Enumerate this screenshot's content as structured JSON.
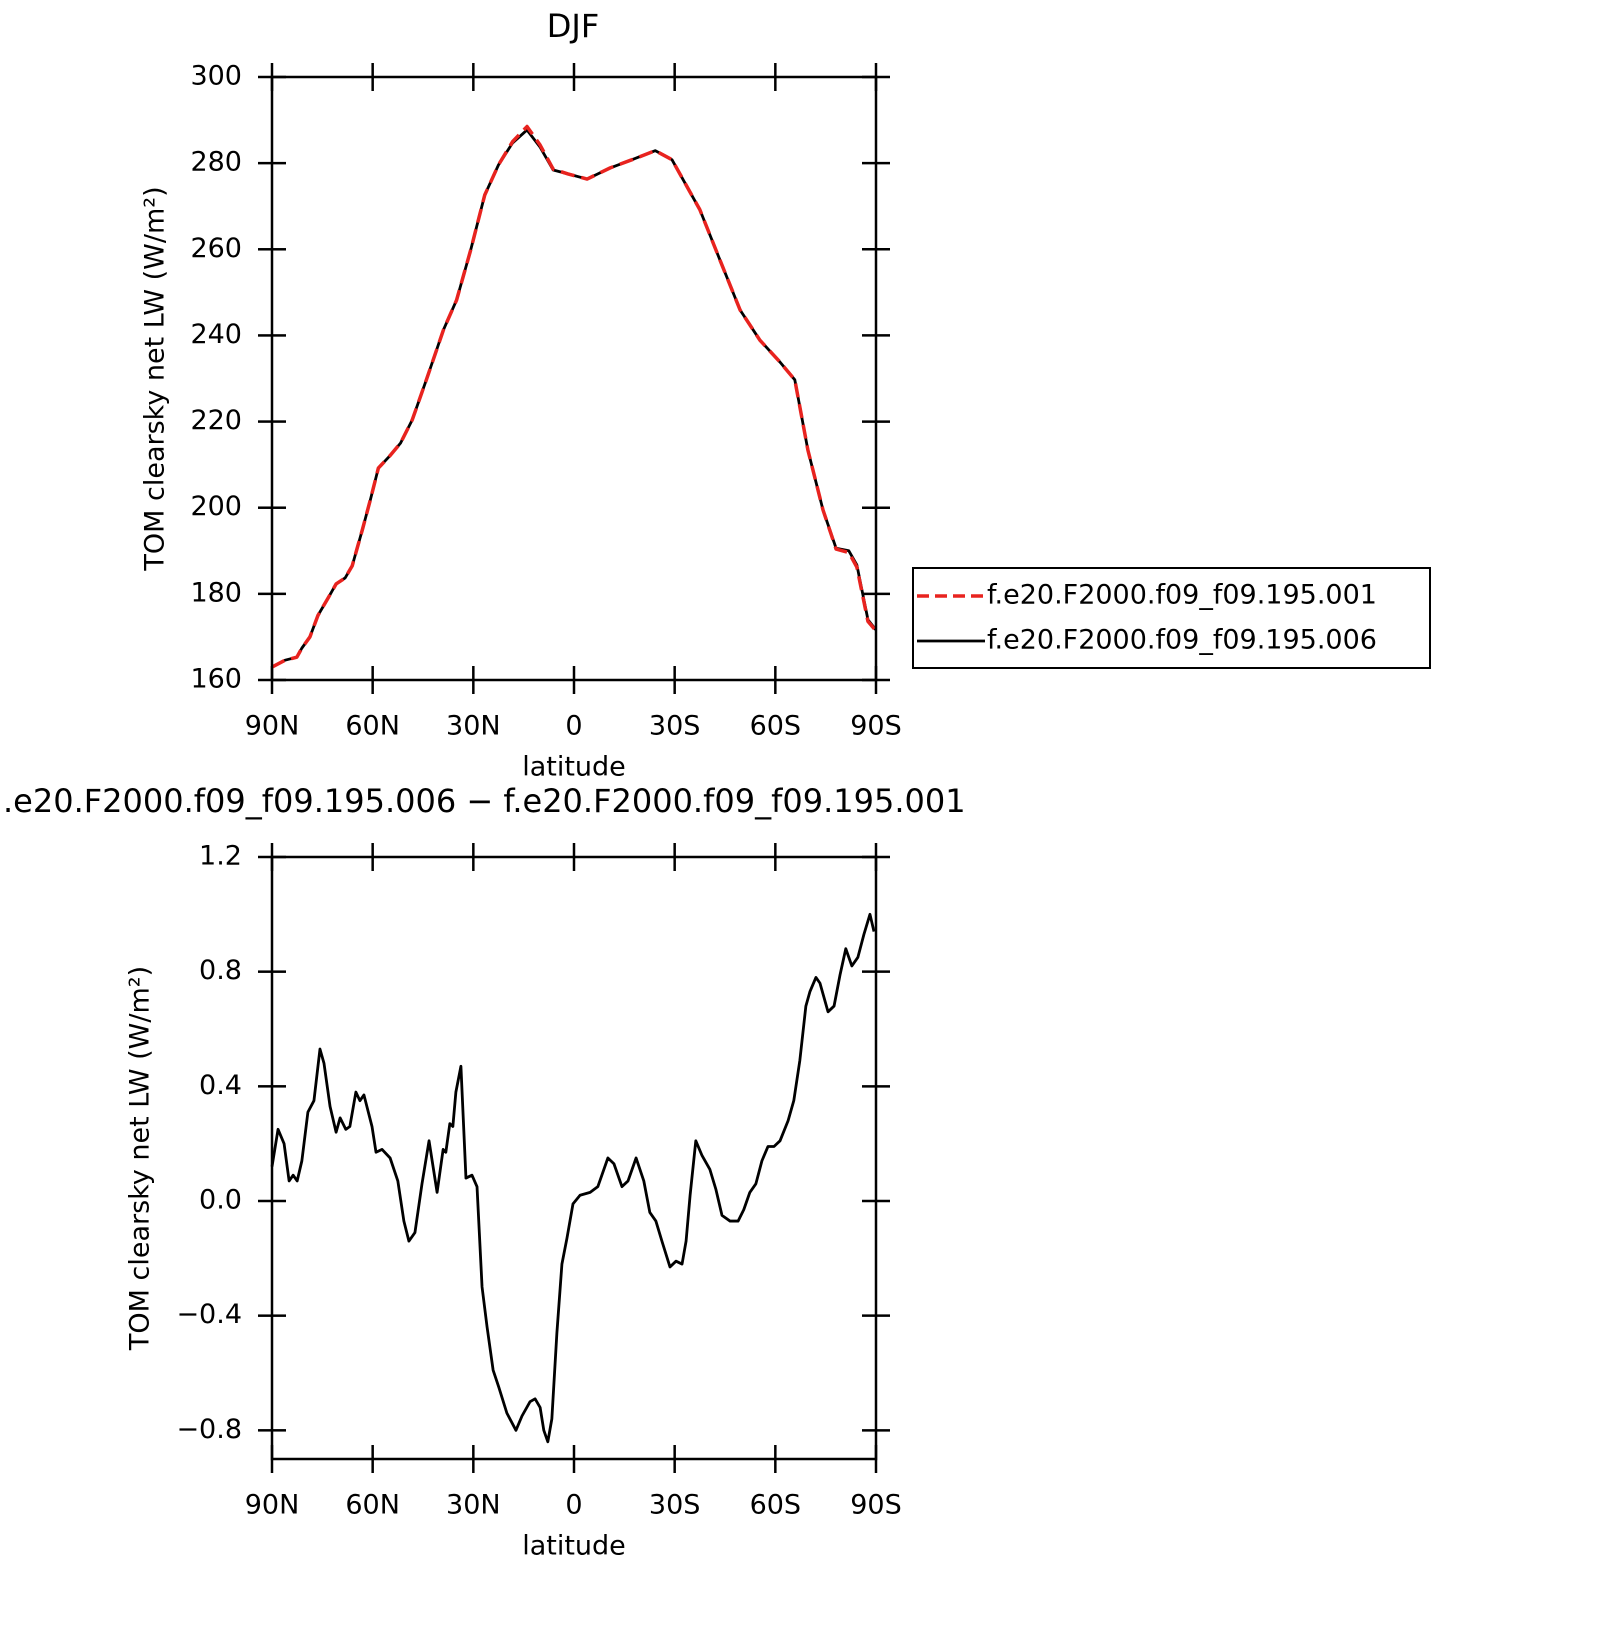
{
  "chart_data": [
    {
      "type": "line",
      "title": "DJF",
      "xlabel": "latitude",
      "ylabel": "TOM clearsky net LW (W/m²)",
      "x": [
        90,
        86.1,
        82.6,
        81.1,
        78.7,
        76.3,
        73.3,
        70.9,
        68.2,
        66.1,
        63.1,
        60.7,
        58.3,
        54.7,
        51.7,
        48.2,
        44.0,
        38.9,
        35.0,
        30.8,
        26.6,
        22.5,
        18.3,
        14.0,
        10.1,
        6.2,
        1.8,
        -3.9,
        -10.8,
        -17.3,
        -24.2,
        -29.2,
        -37.5,
        -43.5,
        -49.5,
        -55.4,
        -61.4,
        -65.8,
        -69.7,
        -74.2,
        -78.1,
        -81.9,
        -84.3,
        -87.6,
        -90
      ],
      "series": [
        {
          "name": "f.e20.F2000.f09_f09.195.001",
          "color": "#e8231f",
          "line_style": "dashed",
          "values": [
            163,
            164.6,
            165.3,
            167.4,
            170,
            175,
            179,
            182.3,
            183.7,
            186.5,
            194.8,
            201.8,
            209.2,
            212.2,
            215,
            220.4,
            229.7,
            241.3,
            248.2,
            259.8,
            272.6,
            279.6,
            285.0,
            288.5,
            284.2,
            278.6,
            277.5,
            276.3,
            278.9,
            280.8,
            282.9,
            280.8,
            269.2,
            257.5,
            245.9,
            238.9,
            233.8,
            229.7,
            213.4,
            199.5,
            190.4,
            189.6,
            186.2,
            173.6,
            171.4
          ]
        },
        {
          "name": "f.e20.F2000.f09_f09.195.006",
          "color": "#000000",
          "line_style": "solid",
          "values": [
            163,
            164.6,
            165.3,
            167.4,
            170,
            175,
            179,
            182.3,
            183.7,
            186.5,
            194.8,
            201.8,
            209.2,
            212.2,
            215,
            220.4,
            229.7,
            241.3,
            248.2,
            259.8,
            272.6,
            279.6,
            284.7,
            287.7,
            283.7,
            278.4,
            277.5,
            276.3,
            278.9,
            280.8,
            282.9,
            280.8,
            269.2,
            257.5,
            245.9,
            238.9,
            233.8,
            229.7,
            213.4,
            199.5,
            190.6,
            190,
            186.7,
            174,
            171.6
          ]
        }
      ],
      "xlim": [
        90,
        -90
      ],
      "xticks": [
        {
          "value": 90,
          "label": "90N"
        },
        {
          "value": 60,
          "label": "60N"
        },
        {
          "value": 30,
          "label": "30N"
        },
        0,
        {
          "value": -30,
          "label": "30S"
        },
        {
          "value": -60,
          "label": "60S"
        },
        {
          "value": -90,
          "label": "90S"
        }
      ],
      "ylim": [
        160,
        300
      ],
      "yticks": [
        160,
        180,
        200,
        220,
        240,
        260,
        280,
        300
      ],
      "legend": "right"
    },
    {
      "type": "line",
      "title": ".e20.F2000.f09_f09.195.006 − f.e20.F2000.f09_f09.195.001",
      "xlabel": "latitude",
      "ylabel": "TOM clearsky net LW (W/m²)",
      "x": [
        90,
        88.2,
        86.4,
        84.9,
        83.7,
        82.5,
        81.1,
        79.3,
        77.5,
        75.7,
        74.5,
        72.7,
        70.9,
        69.7,
        68.0,
        66.8,
        65.0,
        63.8,
        62.6,
        60.2,
        59.0,
        57.2,
        54.8,
        52.5,
        50.7,
        49.2,
        47.4,
        45.3,
        43.2,
        42.0,
        40.8,
        39.0,
        38.2,
        37.0,
        36.1,
        35.2,
        33.7,
        32.2,
        30.4,
        28.9,
        27.4,
        25.9,
        24.1,
        22.4,
        20.0,
        17.3,
        15.5,
        13.1,
        11.6,
        10.1,
        9.0,
        7.8,
        6.6,
        5.1,
        3.6,
        2.1,
        0.3,
        -1.8,
        -4.8,
        -7.1,
        -10.1,
        -11.9,
        -14.3,
        -16.1,
        -18.5,
        -20.8,
        -22.6,
        -24.4,
        -26.2,
        -28.6,
        -30.4,
        -32.2,
        -33.4,
        -34.6,
        -36.3,
        -38.1,
        -40.5,
        -42.3,
        -44.1,
        -46.5,
        -48.9,
        -50.6,
        -52.4,
        -54.2,
        -56.0,
        -57.8,
        -59.6,
        -61.4,
        -63.8,
        -65.5,
        -67.3,
        -69.1,
        -70.3,
        -72.1,
        -73.3,
        -75.7,
        -77.5,
        -79.3,
        -81.0,
        -82.8,
        -84.6,
        -86.4,
        -88.2,
        -89.4
      ],
      "color": "#000000",
      "values": [
        0.12,
        0.25,
        0.2,
        0.07,
        0.09,
        0.07,
        0.14,
        0.31,
        0.35,
        0.53,
        0.48,
        0.33,
        0.24,
        0.29,
        0.25,
        0.26,
        0.38,
        0.35,
        0.37,
        0.26,
        0.17,
        0.18,
        0.15,
        0.07,
        -0.07,
        -0.14,
        -0.11,
        0.06,
        0.21,
        0.12,
        0.03,
        0.18,
        0.17,
        0.27,
        0.26,
        0.38,
        0.47,
        0.08,
        0.09,
        0.05,
        -0.3,
        -0.44,
        -0.59,
        -0.65,
        -0.74,
        -0.8,
        -0.75,
        -0.7,
        -0.69,
        -0.72,
        -0.8,
        -0.84,
        -0.76,
        -0.46,
        -0.22,
        -0.13,
        -0.01,
        0.02,
        0.03,
        0.05,
        0.15,
        0.13,
        0.05,
        0.07,
        0.15,
        0.07,
        -0.04,
        -0.07,
        -0.14,
        -0.23,
        -0.21,
        -0.22,
        -0.14,
        0.02,
        0.21,
        0.16,
        0.11,
        0.04,
        -0.05,
        -0.07,
        -0.07,
        -0.03,
        0.03,
        0.06,
        0.14,
        0.19,
        0.19,
        0.21,
        0.28,
        0.35,
        0.49,
        0.68,
        0.73,
        0.78,
        0.76,
        0.66,
        0.68,
        0.79,
        0.88,
        0.82,
        0.85,
        0.93,
        1.0,
        0.94
      ],
      "xlim": [
        90,
        -90
      ],
      "xticks": [
        {
          "value": 90,
          "label": "90N"
        },
        {
          "value": 60,
          "label": "60N"
        },
        {
          "value": 30,
          "label": "30N"
        },
        0,
        {
          "value": -30,
          "label": "30S"
        },
        {
          "value": -60,
          "label": "60S"
        },
        {
          "value": -90,
          "label": "90S"
        }
      ],
      "ylim": [
        -0.9,
        1.2
      ],
      "yticks": [
        {
          "value": -0.8,
          "label": "−0.8"
        },
        {
          "value": -0.4,
          "label": "−0.4"
        },
        {
          "value": 0,
          "label": "0.0"
        },
        0.4,
        0.8,
        1.2
      ]
    }
  ]
}
